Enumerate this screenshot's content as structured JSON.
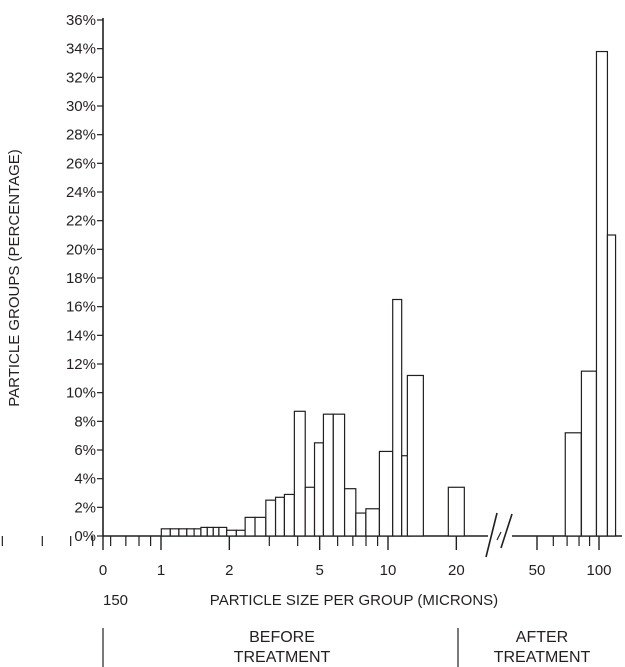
{
  "chart_data": {
    "type": "bar",
    "ylabel": "PARTICLE GROUPS (PERCENTAGE)",
    "xlabel": "PARTICLE SIZE PER GROUP (MICRONS)",
    "x_scale": "log",
    "ylim": [
      0,
      36
    ],
    "y_ticks": [
      "0%",
      "2%",
      "4%",
      "6%",
      "8%",
      "10%",
      "12%",
      "14%",
      "16%",
      "18%",
      "20%",
      "22%",
      "24%",
      "26%",
      "28%",
      "30%",
      "32%",
      "34%",
      "36%"
    ],
    "y_tick_values": [
      0,
      2,
      4,
      6,
      8,
      10,
      12,
      14,
      16,
      18,
      20,
      22,
      24,
      26,
      28,
      30,
      32,
      34,
      36
    ],
    "x_tick_labels": [
      {
        "label": "0",
        "value": 0.1
      },
      {
        "label": "1",
        "value": 1
      },
      {
        "label": "2",
        "value": 2
      },
      {
        "label": "5",
        "value": 5
      },
      {
        "label": "10",
        "value": 10
      },
      {
        "label": "20",
        "value": 20
      },
      {
        "label": "50",
        "value": 50
      },
      {
        "label": "100",
        "value": 100
      }
    ],
    "x_minor_ticks": [
      0.2,
      0.3,
      0.4,
      0.5,
      0.6,
      0.7,
      0.8,
      0.9,
      3,
      4,
      6,
      7,
      8,
      9,
      60,
      70,
      80,
      90
    ],
    "extra_x_label": "150",
    "axis_break": {
      "from": 30,
      "to": 40
    },
    "grid": false,
    "sections": [
      "BEFORE TREATMENT",
      "AFTER TREATMENT"
    ],
    "before_treatment": [
      {
        "x": 1.05,
        "value": 0.5
      },
      {
        "x": 1.15,
        "value": 0.5
      },
      {
        "x": 1.25,
        "value": 0.5
      },
      {
        "x": 1.35,
        "value": 0.5
      },
      {
        "x": 1.45,
        "value": 0.5
      },
      {
        "x": 1.55,
        "value": 0.6
      },
      {
        "x": 1.65,
        "value": 0.6
      },
      {
        "x": 1.75,
        "value": 0.6
      },
      {
        "x": 1.85,
        "value": 0.6
      },
      {
        "x": 2.05,
        "value": 0.4
      },
      {
        "x": 2.25,
        "value": 0.4
      },
      {
        "x": 2.45,
        "value": 1.3
      },
      {
        "x": 2.75,
        "value": 1.3
      },
      {
        "x": 3.05,
        "value": 2.5
      },
      {
        "x": 3.35,
        "value": 2.7
      },
      {
        "x": 3.65,
        "value": 2.9
      },
      {
        "x": 4.1,
        "value": 8.7
      },
      {
        "x": 4.55,
        "value": 3.4
      },
      {
        "x": 4.95,
        "value": 6.5
      },
      {
        "x": 5.45,
        "value": 8.5
      },
      {
        "x": 6.05,
        "value": 8.5
      },
      {
        "x": 6.85,
        "value": 3.3
      },
      {
        "x": 7.6,
        "value": 1.6
      },
      {
        "x": 8.4,
        "value": 1.9
      },
      {
        "x": 10.0,
        "value": 5.9
      },
      {
        "x": 11.0,
        "value": 16.5
      },
      {
        "x": 12.0,
        "value": 5.6
      },
      {
        "x": 13.2,
        "value": 11.2
      },
      {
        "x": 20.0,
        "value": 3.4
      }
    ],
    "after_treatment": [
      {
        "x": 75,
        "value": 7.2
      },
      {
        "x": 90,
        "value": 11.5
      },
      {
        "x": 105,
        "value": 33.8
      },
      {
        "x": 115,
        "value": 21.0
      }
    ]
  }
}
